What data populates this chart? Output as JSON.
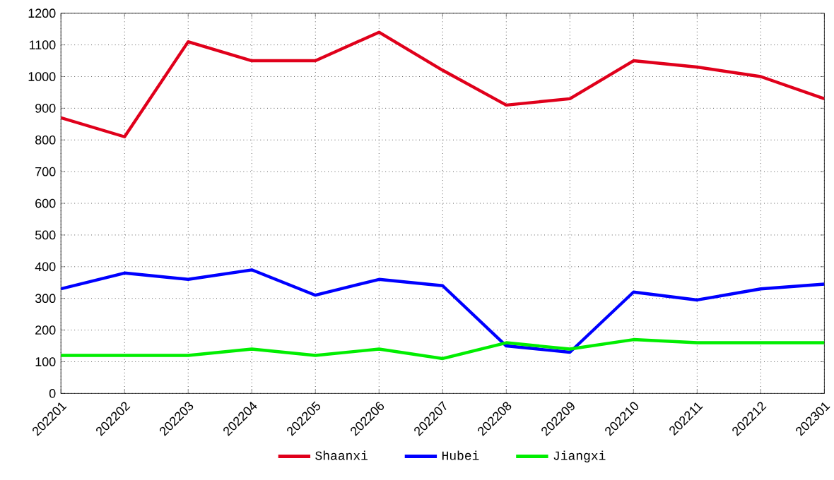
{
  "chart_data": {
    "type": "line",
    "categories": [
      "202201",
      "202202",
      "202203",
      "202204",
      "202205",
      "202206",
      "202207",
      "202208",
      "202209",
      "202210",
      "202211",
      "202212",
      "202301"
    ],
    "series": [
      {
        "name": "Shaanxi",
        "color": "#e0001b",
        "values": [
          870,
          810,
          1110,
          1050,
          1050,
          1140,
          1020,
          910,
          930,
          1050,
          1030,
          1000,
          930
        ]
      },
      {
        "name": "Hubei",
        "color": "#0000ff",
        "values": [
          330,
          380,
          360,
          390,
          310,
          360,
          340,
          150,
          130,
          320,
          295,
          330,
          345
        ]
      },
      {
        "name": "Jiangxi",
        "color": "#00ee00",
        "values": [
          120,
          120,
          120,
          140,
          120,
          140,
          110,
          160,
          140,
          170,
          160,
          160,
          160
        ]
      }
    ],
    "ylim": [
      0,
      1200
    ],
    "yticks": [
      0,
      100,
      200,
      300,
      400,
      500,
      600,
      700,
      800,
      900,
      1000,
      1100,
      1200
    ],
    "grid": true,
    "legend": "bottom",
    "marker": "none",
    "line_style": "solid"
  }
}
